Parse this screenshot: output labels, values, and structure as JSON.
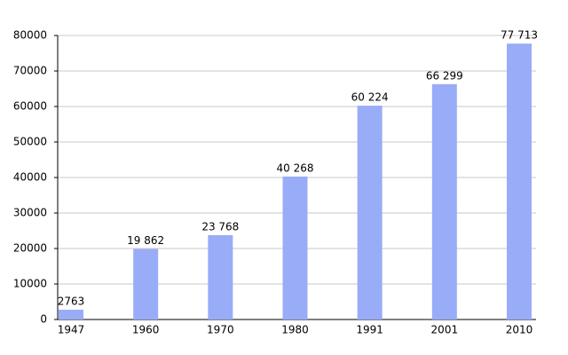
{
  "chart_data": {
    "type": "bar",
    "categories": [
      "1947",
      "1960",
      "1970",
      "1980",
      "1991",
      "2001",
      "2010"
    ],
    "values": [
      2763,
      19862,
      23768,
      40268,
      60224,
      66299,
      77713
    ],
    "value_labels": [
      "2763",
      "19 862",
      "23 768",
      "40 268",
      "60 224",
      "66 299",
      "77 713"
    ],
    "color": "#99acf7",
    "ylim": [
      0,
      80000
    ],
    "yticks": [
      0,
      10000,
      20000,
      30000,
      40000,
      50000,
      60000,
      70000,
      80000
    ],
    "grid": true
  }
}
